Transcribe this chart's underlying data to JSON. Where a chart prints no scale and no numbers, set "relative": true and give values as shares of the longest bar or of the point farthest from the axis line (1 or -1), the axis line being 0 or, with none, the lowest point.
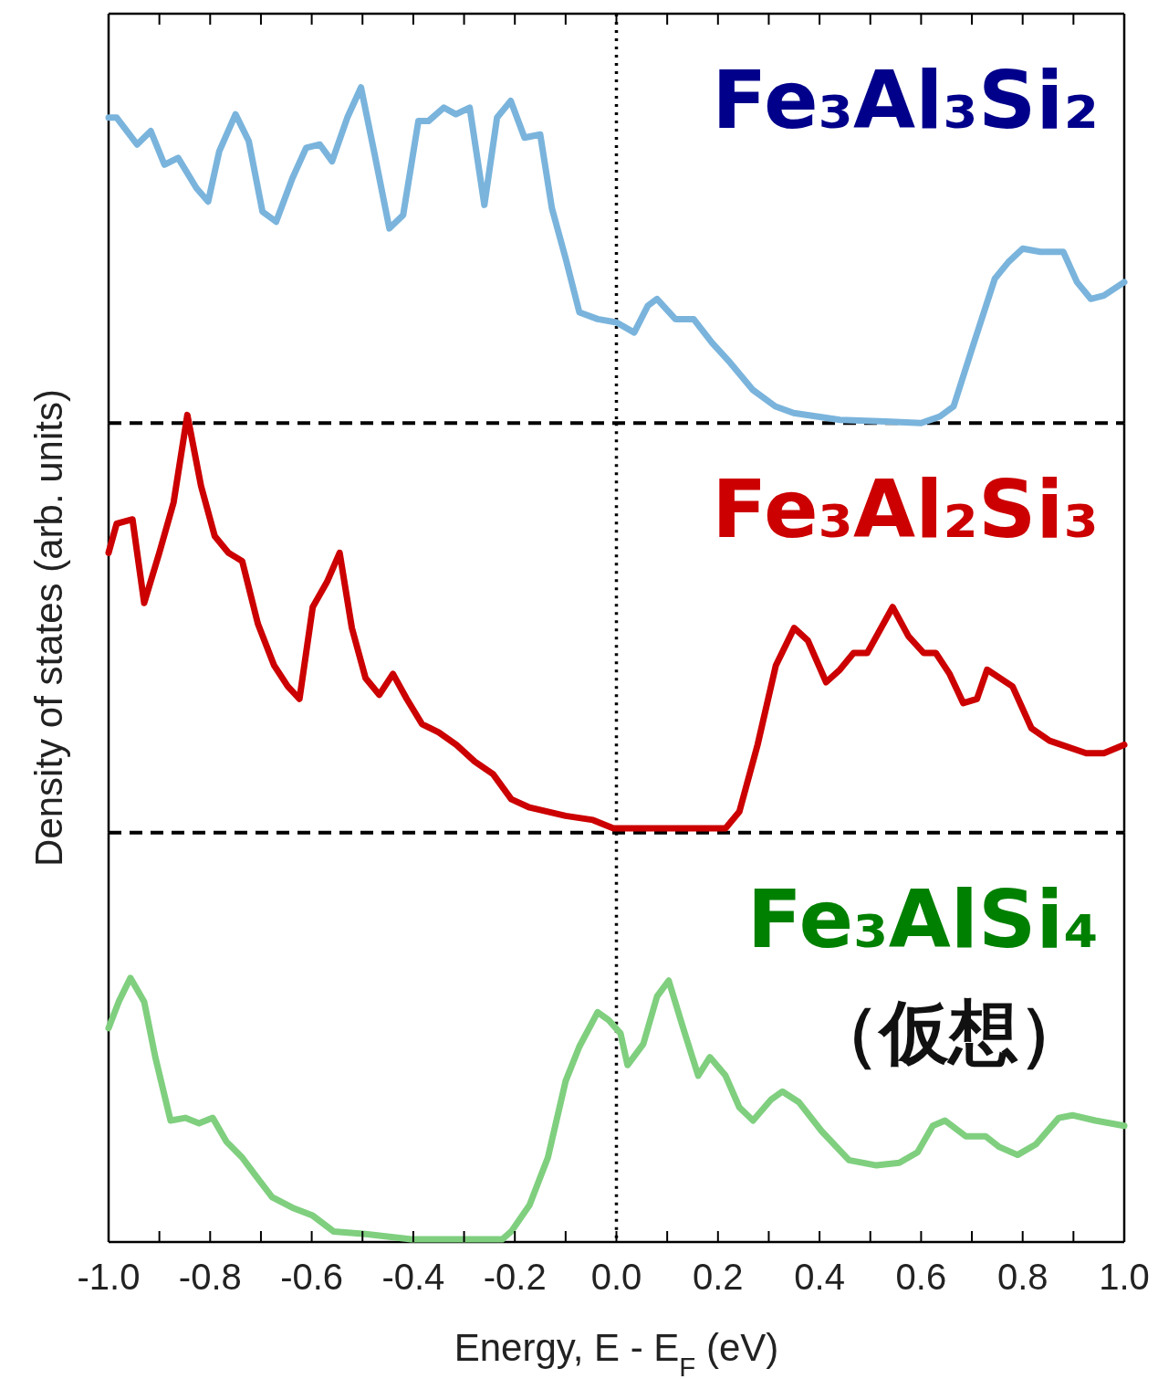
{
  "chart_data": [
    {
      "type": "line",
      "title": "Fe₃Al₃Si₂",
      "relative": true,
      "xlim": [
        -1,
        1
      ],
      "tick_labels": false,
      "series": [
        {
          "color": "#7ab4dc",
          "x": [
            -1.0,
            -0.984,
            -0.944,
            -0.917,
            -0.89,
            -0.863,
            -0.827,
            -0.804,
            -0.782,
            -0.75,
            -0.724,
            -0.697,
            -0.67,
            -0.638,
            -0.611,
            -0.584,
            -0.56,
            -0.53,
            -0.503,
            -0.476,
            -0.447,
            -0.42,
            -0.39,
            -0.37,
            -0.34,
            -0.316,
            -0.289,
            -0.26,
            -0.235,
            -0.208,
            -0.181,
            -0.15,
            -0.127,
            -0.1,
            -0.073,
            -0.037,
            0.0,
            0.035,
            0.062,
            0.08,
            0.116,
            0.152,
            0.188,
            0.224,
            0.268,
            0.313,
            0.349,
            0.44,
            0.53,
            0.6,
            0.637,
            0.664,
            0.7,
            0.745,
            0.772,
            0.8,
            0.835,
            0.88,
            0.907,
            0.934,
            0.96,
            1.0
          ],
          "values": [
            0.91,
            0.91,
            0.83,
            0.87,
            0.77,
            0.79,
            0.7,
            0.66,
            0.81,
            0.92,
            0.84,
            0.63,
            0.6,
            0.73,
            0.82,
            0.83,
            0.78,
            0.91,
            1.0,
            0.8,
            0.58,
            0.62,
            0.9,
            0.9,
            0.94,
            0.92,
            0.94,
            0.65,
            0.91,
            0.96,
            0.85,
            0.86,
            0.64,
            0.49,
            0.33,
            0.31,
            0.3,
            0.27,
            0.35,
            0.37,
            0.31,
            0.31,
            0.24,
            0.18,
            0.1,
            0.05,
            0.03,
            0.01,
            0.005,
            0.0,
            0.02,
            0.05,
            0.22,
            0.43,
            0.48,
            0.52,
            0.51,
            0.51,
            0.42,
            0.37,
            0.38,
            0.42
          ]
        }
      ],
      "ref_lines": [
        {
          "axis": "x",
          "value": 0,
          "line_style": "dotted",
          "color": "#000000"
        },
        {
          "axis": "y",
          "value": 0,
          "line_style": "dashed",
          "color": "#000000"
        }
      ]
    },
    {
      "type": "line",
      "title": "Fe₃Al₂Si₃",
      "ylabel": "Density of states (arb. units)",
      "relative": true,
      "xlim": [
        -1,
        1
      ],
      "tick_labels": false,
      "series": [
        {
          "color": "#cc0000",
          "x": [
            -1.0,
            -0.984,
            -0.953,
            -0.93,
            -0.9,
            -0.872,
            -0.845,
            -0.818,
            -0.791,
            -0.764,
            -0.737,
            -0.706,
            -0.674,
            -0.647,
            -0.624,
            -0.598,
            -0.57,
            -0.545,
            -0.521,
            -0.494,
            -0.467,
            -0.44,
            -0.413,
            -0.383,
            -0.35,
            -0.315,
            -0.279,
            -0.243,
            -0.207,
            -0.171,
            -0.1,
            -0.046,
            -0.006,
            0.044,
            0.215,
            0.242,
            0.278,
            0.314,
            0.35,
            0.377,
            0.413,
            0.44,
            0.467,
            0.494,
            0.544,
            0.575,
            0.605,
            0.629,
            0.656,
            0.683,
            0.71,
            0.73,
            0.78,
            0.817,
            0.853,
            0.925,
            0.96,
            1.0
          ],
          "values": [
            0.67,
            0.74,
            0.75,
            0.55,
            0.67,
            0.79,
            1.0,
            0.83,
            0.71,
            0.67,
            0.65,
            0.5,
            0.4,
            0.35,
            0.32,
            0.54,
            0.6,
            0.67,
            0.49,
            0.37,
            0.33,
            0.38,
            0.32,
            0.26,
            0.24,
            0.21,
            0.17,
            0.14,
            0.08,
            0.06,
            0.04,
            0.03,
            0.01,
            0.01,
            0.01,
            0.05,
            0.21,
            0.4,
            0.49,
            0.46,
            0.36,
            0.39,
            0.43,
            0.43,
            0.54,
            0.47,
            0.43,
            0.43,
            0.38,
            0.31,
            0.32,
            0.39,
            0.35,
            0.25,
            0.22,
            0.19,
            0.19,
            0.21
          ]
        }
      ],
      "ref_lines": [
        {
          "axis": "x",
          "value": 0,
          "line_style": "dotted",
          "color": "#000000"
        },
        {
          "axis": "y",
          "value": 0,
          "line_style": "dashed",
          "color": "#000000"
        }
      ]
    },
    {
      "type": "line",
      "title": "Fe₃AlSi₄",
      "subtitle": "（仮想）",
      "xlabel": "Energy, E - E$_{F}$ (eV)",
      "relative": true,
      "xlim": [
        -1,
        1
      ],
      "tick_labels": "x",
      "xticks": [
        {
          "value": -1,
          "label": "-1.0"
        },
        {
          "value": -0.9,
          "label": null
        },
        {
          "value": -0.8,
          "label": "-0.8"
        },
        {
          "value": -0.7,
          "label": null
        },
        {
          "value": -0.6,
          "label": "-0.6"
        },
        {
          "value": -0.5,
          "label": null
        },
        {
          "value": -0.4,
          "label": "-0.4"
        },
        {
          "value": -0.3,
          "label": null
        },
        {
          "value": -0.2,
          "label": "-0.2"
        },
        {
          "value": -0.1,
          "label": null
        },
        {
          "value": 0,
          "label": "0.0"
        },
        {
          "value": 0.1,
          "label": null
        },
        {
          "value": 0.2,
          "label": "0.2"
        },
        {
          "value": 0.3,
          "label": null
        },
        {
          "value": 0.4,
          "label": "0.4"
        },
        {
          "value": 0.5,
          "label": null
        },
        {
          "value": 0.6,
          "label": "0.6"
        },
        {
          "value": 0.7,
          "label": null
        },
        {
          "value": 0.8,
          "label": "0.8"
        },
        {
          "value": 0.9,
          "label": null
        },
        {
          "value": 1,
          "label": "1.0"
        }
      ],
      "series": [
        {
          "color": "#7fcf7f",
          "x": [
            -1.0,
            -0.98,
            -0.957,
            -0.93,
            -0.908,
            -0.878,
            -0.849,
            -0.822,
            -0.795,
            -0.768,
            -0.737,
            -0.71,
            -0.678,
            -0.638,
            -0.598,
            -0.557,
            -0.494,
            -0.404,
            -0.225,
            -0.207,
            -0.171,
            -0.135,
            -0.1,
            -0.073,
            -0.037,
            -0.015,
            0.008,
            0.022,
            0.053,
            0.08,
            0.103,
            0.13,
            0.161,
            0.184,
            0.215,
            0.242,
            0.269,
            0.305,
            0.327,
            0.359,
            0.404,
            0.458,
            0.512,
            0.557,
            0.593,
            0.623,
            0.647,
            0.688,
            0.727,
            0.754,
            0.79,
            0.826,
            0.871,
            0.898,
            0.943,
            1.0
          ],
          "values": [
            0.81,
            0.91,
            1.0,
            0.91,
            0.7,
            0.46,
            0.47,
            0.45,
            0.47,
            0.38,
            0.32,
            0.25,
            0.17,
            0.13,
            0.1,
            0.04,
            0.03,
            0.01,
            0.01,
            0.04,
            0.14,
            0.32,
            0.61,
            0.74,
            0.87,
            0.84,
            0.79,
            0.67,
            0.75,
            0.93,
            0.99,
            0.82,
            0.63,
            0.7,
            0.63,
            0.51,
            0.46,
            0.54,
            0.57,
            0.53,
            0.42,
            0.31,
            0.29,
            0.3,
            0.34,
            0.44,
            0.46,
            0.4,
            0.4,
            0.36,
            0.33,
            0.37,
            0.47,
            0.48,
            0.46,
            0.44
          ]
        }
      ],
      "ref_lines": [
        {
          "axis": "x",
          "value": 0,
          "line_style": "dotted",
          "color": "#000000"
        }
      ]
    }
  ]
}
